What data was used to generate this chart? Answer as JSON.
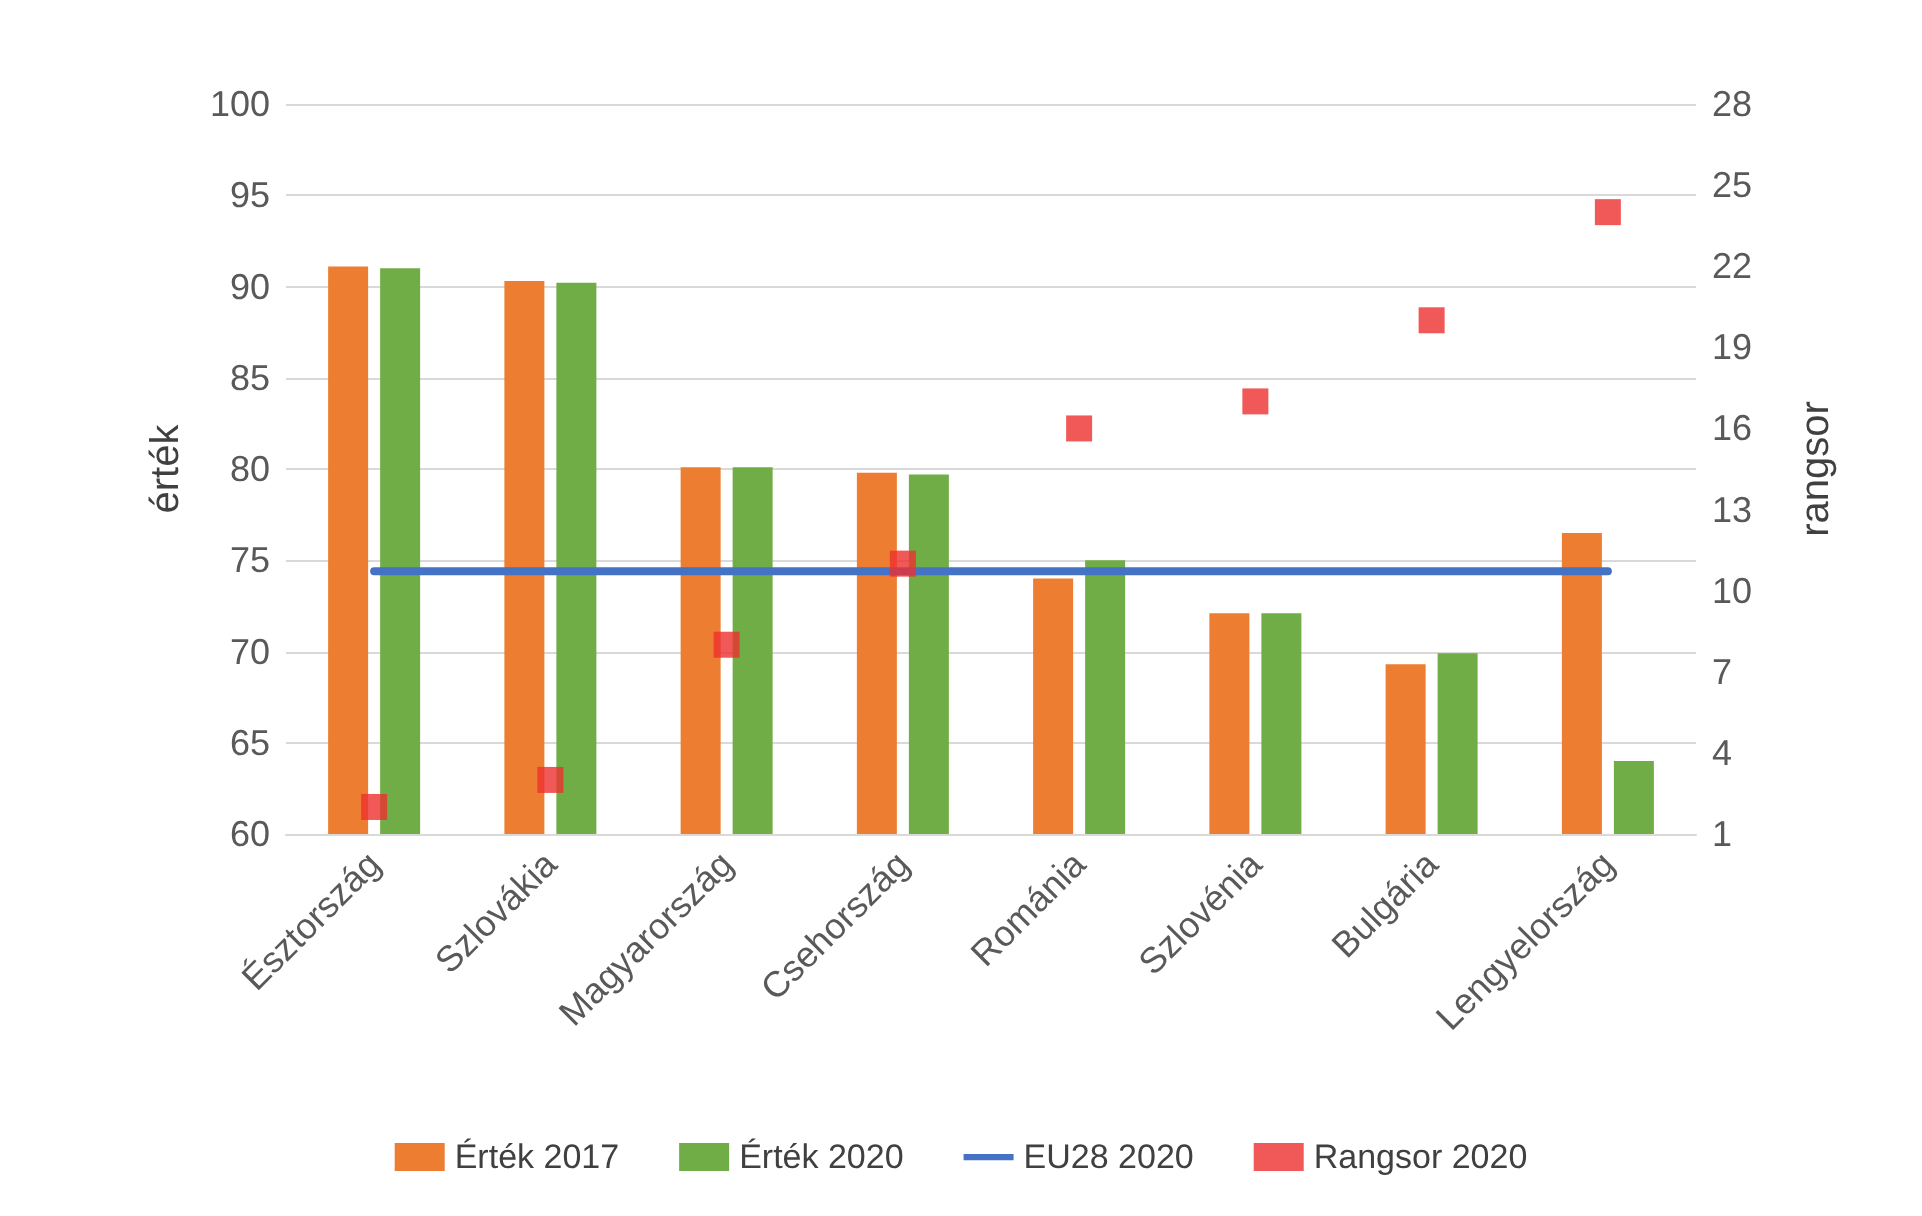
{
  "chart_data": {
    "type": "bar",
    "ylabel": "érték",
    "y2label": "rangsor",
    "categories": [
      "Észtország",
      "Szlovákia",
      "Magyarország",
      "Csehország",
      "Románia",
      "Szlovénia",
      "Bulgária",
      "Lengyelország"
    ],
    "series": [
      {
        "name": "Érték 2017",
        "color": "#ed7d31",
        "values": [
          91.1,
          90.3,
          80.1,
          79.8,
          74.0,
          72.1,
          69.3,
          76.5
        ]
      },
      {
        "name": "Érték 2020",
        "color": "#70ad47",
        "values": [
          91.0,
          90.2,
          80.1,
          79.7,
          75.0,
          72.1,
          69.9,
          64.0
        ]
      },
      {
        "name": "EU28 2020",
        "type": "line",
        "color": "#4472c4",
        "marker": "none",
        "values": [
          74.4,
          74.4,
          74.4,
          74.4,
          74.4,
          74.4,
          74.4,
          74.4
        ]
      },
      {
        "name": "Rangsor 2020",
        "type": "scatter",
        "axis": "y2",
        "color": "#ee3030",
        "marker": "square",
        "values": [
          2,
          3,
          8,
          11,
          16,
          17,
          20,
          24
        ]
      }
    ],
    "ylim": [
      60,
      100
    ],
    "yticks": [
      60,
      65,
      70,
      75,
      80,
      85,
      90,
      95,
      100
    ],
    "y2lim": [
      1,
      28
    ],
    "y2ticks": [
      1,
      4,
      7,
      10,
      13,
      16,
      19,
      22,
      25,
      28
    ],
    "grid": "y",
    "legend": "bottom"
  }
}
